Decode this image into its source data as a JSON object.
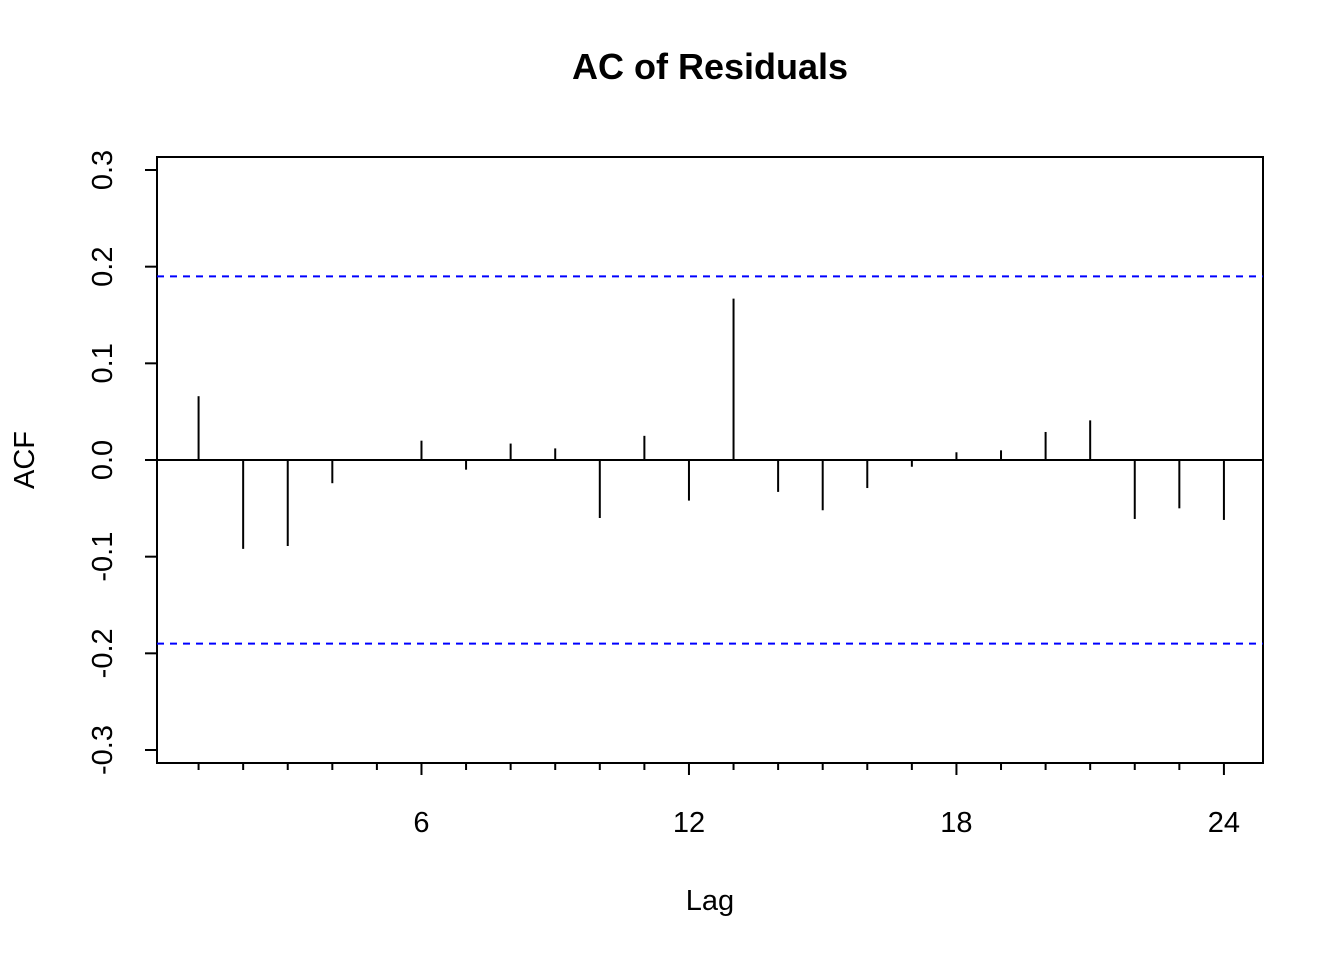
{
  "chart_data": {
    "type": "bar",
    "title": "AC of Residuals",
    "xlabel": "Lag",
    "ylabel": "ACF",
    "xlim": [
      0.25,
      24.75
    ],
    "ylim": [
      -0.3,
      0.3
    ],
    "x_ticks": [
      1,
      2,
      3,
      4,
      5,
      6,
      7,
      8,
      9,
      10,
      11,
      12,
      13,
      14,
      15,
      16,
      17,
      18,
      19,
      20,
      21,
      22,
      23,
      24
    ],
    "x_tick_labels": [
      "6",
      "12",
      "18",
      "24"
    ],
    "x_labeled_ticks": [
      6,
      12,
      18,
      24
    ],
    "y_ticks": [
      -0.3,
      -0.2,
      -0.1,
      0.0,
      0.1,
      0.2,
      0.3
    ],
    "y_tick_labels": [
      "-0.3",
      "-0.2",
      "-0.1",
      "0.0",
      "0.1",
      "0.2",
      "0.3"
    ],
    "lags": [
      1,
      2,
      3,
      4,
      5,
      6,
      7,
      8,
      9,
      10,
      11,
      12,
      13,
      14,
      15,
      16,
      17,
      18,
      19,
      20,
      21,
      22,
      23,
      24
    ],
    "values": [
      0.066,
      -0.092,
      -0.089,
      -0.024,
      -0.001,
      0.02,
      -0.01,
      0.017,
      0.012,
      -0.06,
      0.025,
      -0.042,
      0.167,
      -0.033,
      -0.052,
      -0.029,
      -0.007,
      0.008,
      0.01,
      0.029,
      0.041,
      -0.061,
      -0.05,
      -0.062
    ],
    "confidence_bounds": [
      0.19,
      -0.19
    ],
    "zero_line": 0,
    "grid": false,
    "colors": {
      "spikes": "#000000",
      "bounds": "#0000ff",
      "axes": "#000000"
    }
  }
}
